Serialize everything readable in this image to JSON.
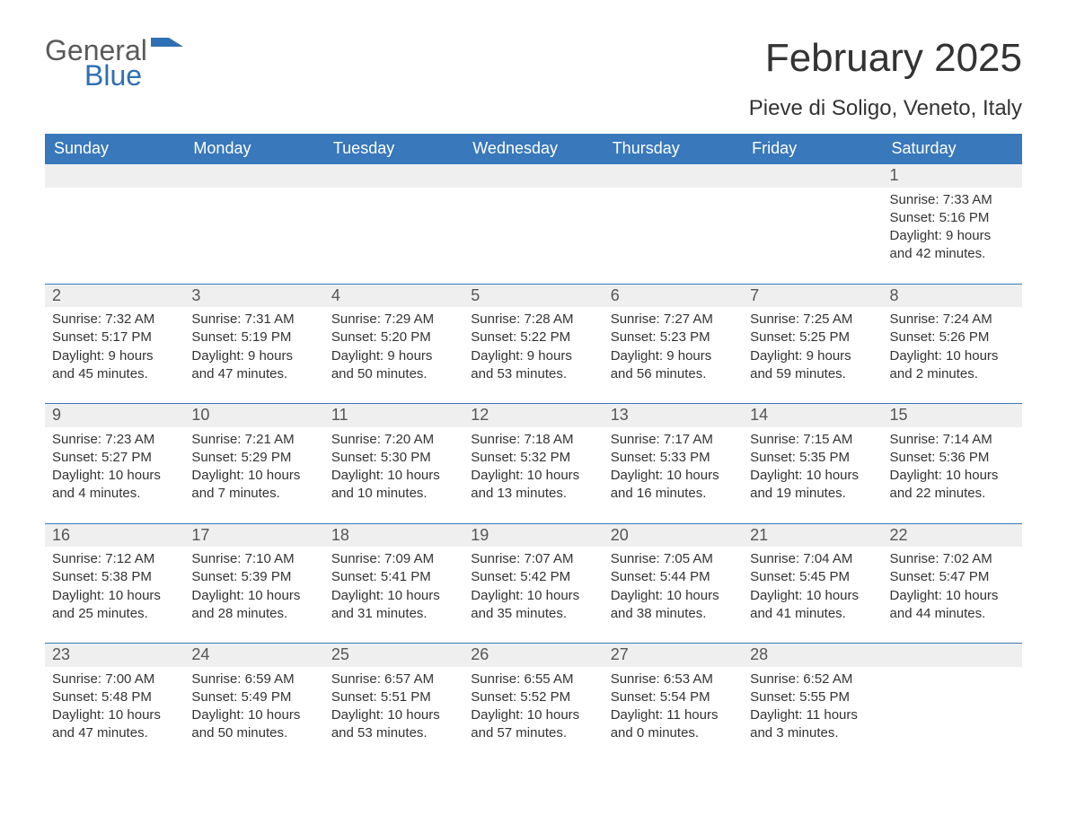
{
  "logo": {
    "text1": "General",
    "text2": "Blue"
  },
  "title": "February 2025",
  "subtitle": "Pieve di Soligo, Veneto, Italy",
  "colors": {
    "header_bg": "#3878bb",
    "header_text": "#ffffff",
    "daynum_bg": "#efefef",
    "daynum_border": "#3878bb",
    "body_text": "#333333",
    "logo_gray": "#5a5a5a",
    "logo_blue": "#2f6fb3",
    "page_bg": "#ffffff"
  },
  "columns": [
    "Sunday",
    "Monday",
    "Tuesday",
    "Wednesday",
    "Thursday",
    "Friday",
    "Saturday"
  ],
  "weeks": [
    {
      "days": [
        null,
        null,
        null,
        null,
        null,
        null,
        {
          "n": "1",
          "sunrise": "Sunrise: 7:33 AM",
          "sunset": "Sunset: 5:16 PM",
          "daylight": "Daylight: 9 hours and 42 minutes."
        }
      ]
    },
    {
      "days": [
        {
          "n": "2",
          "sunrise": "Sunrise: 7:32 AM",
          "sunset": "Sunset: 5:17 PM",
          "daylight": "Daylight: 9 hours and 45 minutes."
        },
        {
          "n": "3",
          "sunrise": "Sunrise: 7:31 AM",
          "sunset": "Sunset: 5:19 PM",
          "daylight": "Daylight: 9 hours and 47 minutes."
        },
        {
          "n": "4",
          "sunrise": "Sunrise: 7:29 AM",
          "sunset": "Sunset: 5:20 PM",
          "daylight": "Daylight: 9 hours and 50 minutes."
        },
        {
          "n": "5",
          "sunrise": "Sunrise: 7:28 AM",
          "sunset": "Sunset: 5:22 PM",
          "daylight": "Daylight: 9 hours and 53 minutes."
        },
        {
          "n": "6",
          "sunrise": "Sunrise: 7:27 AM",
          "sunset": "Sunset: 5:23 PM",
          "daylight": "Daylight: 9 hours and 56 minutes."
        },
        {
          "n": "7",
          "sunrise": "Sunrise: 7:25 AM",
          "sunset": "Sunset: 5:25 PM",
          "daylight": "Daylight: 9 hours and 59 minutes."
        },
        {
          "n": "8",
          "sunrise": "Sunrise: 7:24 AM",
          "sunset": "Sunset: 5:26 PM",
          "daylight": "Daylight: 10 hours and 2 minutes."
        }
      ]
    },
    {
      "days": [
        {
          "n": "9",
          "sunrise": "Sunrise: 7:23 AM",
          "sunset": "Sunset: 5:27 PM",
          "daylight": "Daylight: 10 hours and 4 minutes."
        },
        {
          "n": "10",
          "sunrise": "Sunrise: 7:21 AM",
          "sunset": "Sunset: 5:29 PM",
          "daylight": "Daylight: 10 hours and 7 minutes."
        },
        {
          "n": "11",
          "sunrise": "Sunrise: 7:20 AM",
          "sunset": "Sunset: 5:30 PM",
          "daylight": "Daylight: 10 hours and 10 minutes."
        },
        {
          "n": "12",
          "sunrise": "Sunrise: 7:18 AM",
          "sunset": "Sunset: 5:32 PM",
          "daylight": "Daylight: 10 hours and 13 minutes."
        },
        {
          "n": "13",
          "sunrise": "Sunrise: 7:17 AM",
          "sunset": "Sunset: 5:33 PM",
          "daylight": "Daylight: 10 hours and 16 minutes."
        },
        {
          "n": "14",
          "sunrise": "Sunrise: 7:15 AM",
          "sunset": "Sunset: 5:35 PM",
          "daylight": "Daylight: 10 hours and 19 minutes."
        },
        {
          "n": "15",
          "sunrise": "Sunrise: 7:14 AM",
          "sunset": "Sunset: 5:36 PM",
          "daylight": "Daylight: 10 hours and 22 minutes."
        }
      ]
    },
    {
      "days": [
        {
          "n": "16",
          "sunrise": "Sunrise: 7:12 AM",
          "sunset": "Sunset: 5:38 PM",
          "daylight": "Daylight: 10 hours and 25 minutes."
        },
        {
          "n": "17",
          "sunrise": "Sunrise: 7:10 AM",
          "sunset": "Sunset: 5:39 PM",
          "daylight": "Daylight: 10 hours and 28 minutes."
        },
        {
          "n": "18",
          "sunrise": "Sunrise: 7:09 AM",
          "sunset": "Sunset: 5:41 PM",
          "daylight": "Daylight: 10 hours and 31 minutes."
        },
        {
          "n": "19",
          "sunrise": "Sunrise: 7:07 AM",
          "sunset": "Sunset: 5:42 PM",
          "daylight": "Daylight: 10 hours and 35 minutes."
        },
        {
          "n": "20",
          "sunrise": "Sunrise: 7:05 AM",
          "sunset": "Sunset: 5:44 PM",
          "daylight": "Daylight: 10 hours and 38 minutes."
        },
        {
          "n": "21",
          "sunrise": "Sunrise: 7:04 AM",
          "sunset": "Sunset: 5:45 PM",
          "daylight": "Daylight: 10 hours and 41 minutes."
        },
        {
          "n": "22",
          "sunrise": "Sunrise: 7:02 AM",
          "sunset": "Sunset: 5:47 PM",
          "daylight": "Daylight: 10 hours and 44 minutes."
        }
      ]
    },
    {
      "days": [
        {
          "n": "23",
          "sunrise": "Sunrise: 7:00 AM",
          "sunset": "Sunset: 5:48 PM",
          "daylight": "Daylight: 10 hours and 47 minutes."
        },
        {
          "n": "24",
          "sunrise": "Sunrise: 6:59 AM",
          "sunset": "Sunset: 5:49 PM",
          "daylight": "Daylight: 10 hours and 50 minutes."
        },
        {
          "n": "25",
          "sunrise": "Sunrise: 6:57 AM",
          "sunset": "Sunset: 5:51 PM",
          "daylight": "Daylight: 10 hours and 53 minutes."
        },
        {
          "n": "26",
          "sunrise": "Sunrise: 6:55 AM",
          "sunset": "Sunset: 5:52 PM",
          "daylight": "Daylight: 10 hours and 57 minutes."
        },
        {
          "n": "27",
          "sunrise": "Sunrise: 6:53 AM",
          "sunset": "Sunset: 5:54 PM",
          "daylight": "Daylight: 11 hours and 0 minutes."
        },
        {
          "n": "28",
          "sunrise": "Sunrise: 6:52 AM",
          "sunset": "Sunset: 5:55 PM",
          "daylight": "Daylight: 11 hours and 3 minutes."
        },
        null
      ]
    }
  ]
}
